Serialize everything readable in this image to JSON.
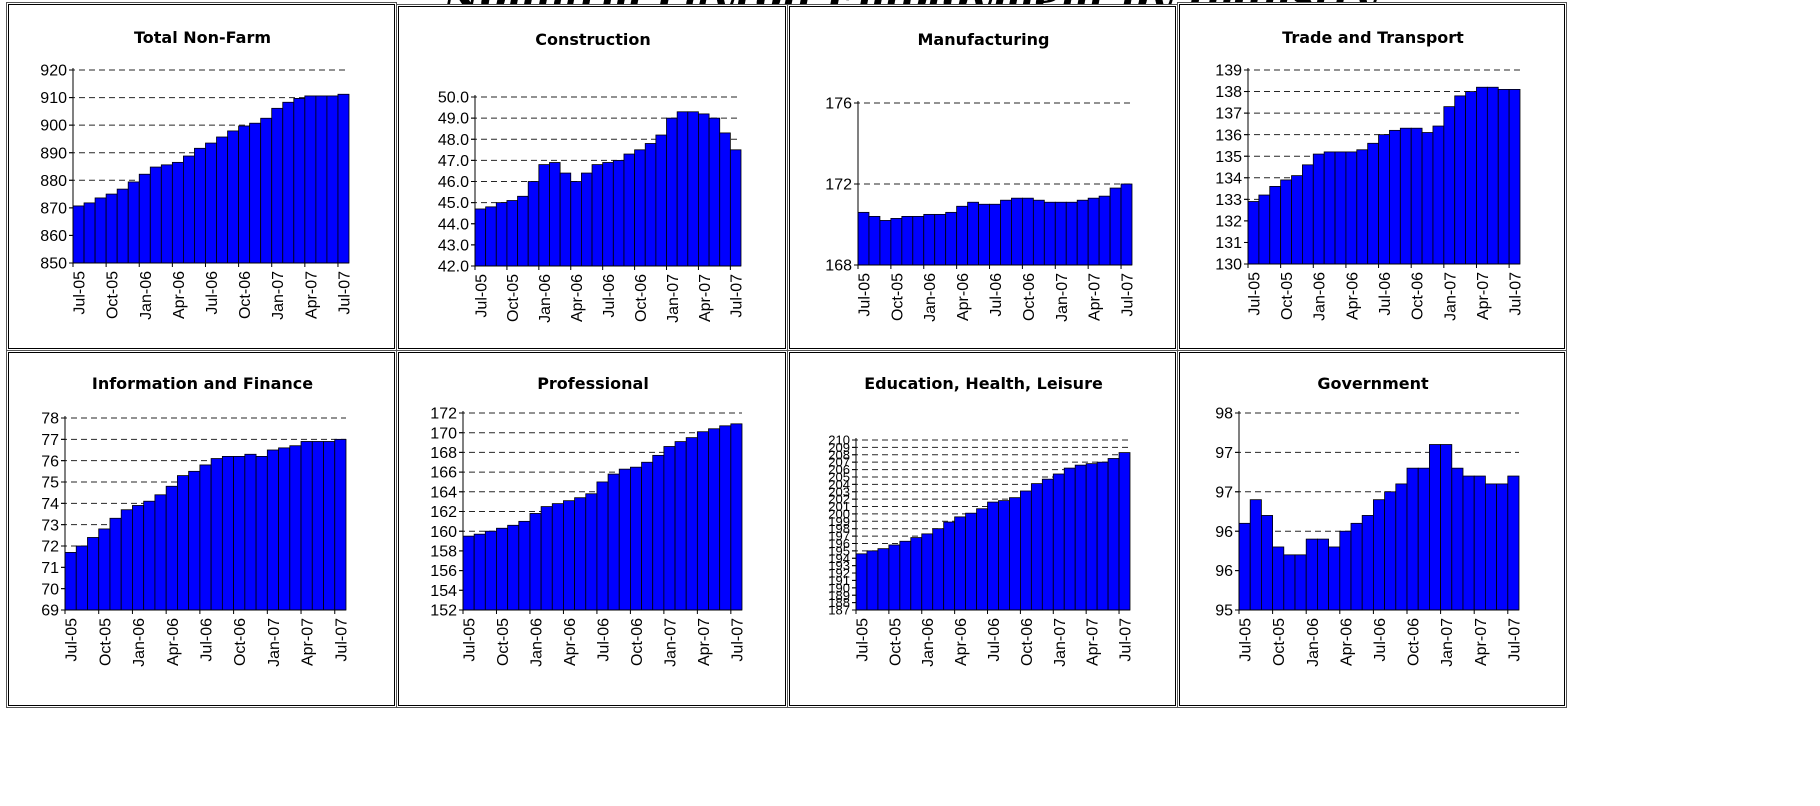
{
  "page_title": "Nonfarm Payroll Employment by Industry",
  "colors": {
    "bar_fill": "#0000FF",
    "bar_stroke": "#000000",
    "grid": "#000000",
    "axis_text": "#000000"
  },
  "chart_data": [
    {
      "type": "bar",
      "title": "Total Non-Farm",
      "categories": [
        "Jul-05",
        "Aug-05",
        "Sep-05",
        "Oct-05",
        "Nov-05",
        "Dec-05",
        "Jan-06",
        "Feb-06",
        "Mar-06",
        "Apr-06",
        "May-06",
        "Jun-06",
        "Jul-06",
        "Aug-06",
        "Sep-06",
        "Oct-06",
        "Nov-06",
        "Dec-06",
        "Jan-07",
        "Feb-07",
        "Mar-07",
        "Apr-07",
        "May-07",
        "Jun-07",
        "Jul-07"
      ],
      "tick_labels": [
        "Jul-05",
        "Oct-05",
        "Jan-06",
        "Apr-06",
        "Jul-06",
        "Oct-06",
        "Jan-07",
        "Apr-07",
        "Jul-07"
      ],
      "values": [
        870.7,
        871.8,
        873.6,
        875.0,
        876.8,
        879.4,
        882.2,
        884.8,
        885.6,
        886.5,
        888.8,
        891.6,
        893.5,
        895.7,
        897.9,
        899.7,
        900.7,
        902.5,
        906.1,
        908.3,
        909.7,
        910.6,
        910.6,
        910.6,
        911.2
      ],
      "yticks": [
        "850",
        "860",
        "870",
        "880",
        "890",
        "900",
        "910",
        "920"
      ],
      "ylim": [
        850,
        920
      ],
      "grid": true
    },
    {
      "type": "bar",
      "title": "Construction",
      "categories": [
        "Jul-05",
        "Aug-05",
        "Sep-05",
        "Oct-05",
        "Nov-05",
        "Dec-05",
        "Jan-06",
        "Feb-06",
        "Mar-06",
        "Apr-06",
        "May-06",
        "Jun-06",
        "Jul-06",
        "Aug-06",
        "Sep-06",
        "Oct-06",
        "Nov-06",
        "Dec-06",
        "Jan-07",
        "Feb-07",
        "Mar-07",
        "Apr-07",
        "May-07",
        "Jun-07",
        "Jul-07"
      ],
      "tick_labels": [
        "Jul-05",
        "Oct-05",
        "Jan-06",
        "Apr-06",
        "Jul-06",
        "Oct-06",
        "Jan-07",
        "Apr-07",
        "Jul-07"
      ],
      "values": [
        44.7,
        44.8,
        45.0,
        45.1,
        45.3,
        46.0,
        46.8,
        46.9,
        46.4,
        46.0,
        46.4,
        46.8,
        46.9,
        47.0,
        47.3,
        47.5,
        47.8,
        48.2,
        49.0,
        49.3,
        49.3,
        49.2,
        49.0,
        48.3,
        47.5
      ],
      "yticks": [
        "42.0",
        "43.0",
        "44.0",
        "45.0",
        "46.0",
        "47.0",
        "48.0",
        "49.0",
        "50.0"
      ],
      "ylim": [
        42,
        50
      ],
      "grid": true
    },
    {
      "type": "bar",
      "title": "Manufacturing",
      "categories": [
        "Jul-05",
        "Aug-05",
        "Sep-05",
        "Oct-05",
        "Nov-05",
        "Dec-05",
        "Jan-06",
        "Feb-06",
        "Mar-06",
        "Apr-06",
        "May-06",
        "Jun-06",
        "Jul-06",
        "Aug-06",
        "Sep-06",
        "Oct-06",
        "Nov-06",
        "Dec-06",
        "Jan-07",
        "Feb-07",
        "Mar-07",
        "Apr-07",
        "May-07",
        "Jun-07",
        "Jul-07"
      ],
      "tick_labels": [
        "Jul-05",
        "Oct-05",
        "Jan-06",
        "Apr-06",
        "Jul-06",
        "Oct-06",
        "Jan-07",
        "Apr-07",
        "Jul-07"
      ],
      "values": [
        170.6,
        170.4,
        170.2,
        170.3,
        170.4,
        170.4,
        170.5,
        170.5,
        170.6,
        170.9,
        171.1,
        171.0,
        171.0,
        171.2,
        171.3,
        171.3,
        171.2,
        171.1,
        171.1,
        171.1,
        171.2,
        171.3,
        171.4,
        171.8,
        172.0
      ],
      "yticks": [
        "168",
        "172",
        "176"
      ],
      "ylim": [
        168,
        176
      ],
      "grid": true
    },
    {
      "type": "bar",
      "title": "Trade and Transport",
      "categories": [
        "Jul-05",
        "Aug-05",
        "Sep-05",
        "Oct-05",
        "Nov-05",
        "Dec-05",
        "Jan-06",
        "Feb-06",
        "Mar-06",
        "Apr-06",
        "May-06",
        "Jun-06",
        "Jul-06",
        "Aug-06",
        "Sep-06",
        "Oct-06",
        "Nov-06",
        "Dec-06",
        "Jan-07",
        "Feb-07",
        "Mar-07",
        "Apr-07",
        "May-07",
        "Jun-07",
        "Jul-07"
      ],
      "tick_labels": [
        "Jul-05",
        "Oct-05",
        "Jan-06",
        "Apr-06",
        "Jul-06",
        "Oct-06",
        "Jan-07",
        "Apr-07",
        "Jul-07"
      ],
      "values": [
        132.9,
        133.2,
        133.6,
        133.9,
        134.1,
        134.6,
        135.1,
        135.2,
        135.2,
        135.2,
        135.3,
        135.6,
        136.0,
        136.2,
        136.3,
        136.3,
        136.1,
        136.4,
        137.3,
        137.8,
        138.0,
        138.2,
        138.2,
        138.1,
        138.1
      ],
      "yticks": [
        "130",
        "131",
        "132",
        "133",
        "134",
        "135",
        "136",
        "137",
        "138",
        "139"
      ],
      "ylim": [
        130,
        139
      ],
      "grid": true
    },
    {
      "type": "bar",
      "title": "Information and Finance",
      "categories": [
        "Jul-05",
        "Aug-05",
        "Sep-05",
        "Oct-05",
        "Nov-05",
        "Dec-05",
        "Jan-06",
        "Feb-06",
        "Mar-06",
        "Apr-06",
        "May-06",
        "Jun-06",
        "Jul-06",
        "Aug-06",
        "Sep-06",
        "Oct-06",
        "Nov-06",
        "Dec-06",
        "Jan-07",
        "Feb-07",
        "Mar-07",
        "Apr-07",
        "May-07",
        "Jun-07",
        "Jul-07"
      ],
      "tick_labels": [
        "Jul-05",
        "Oct-05",
        "Jan-06",
        "Apr-06",
        "Jul-06",
        "Oct-06",
        "Jan-07",
        "Apr-07",
        "Jul-07"
      ],
      "values": [
        71.7,
        72.0,
        72.4,
        72.8,
        73.3,
        73.7,
        73.9,
        74.1,
        74.4,
        74.8,
        75.3,
        75.5,
        75.8,
        76.1,
        76.2,
        76.2,
        76.3,
        76.2,
        76.5,
        76.6,
        76.7,
        76.9,
        76.9,
        76.9,
        77.0
      ],
      "yticks": [
        "69",
        "70",
        "71",
        "72",
        "73",
        "74",
        "75",
        "76",
        "77",
        "78"
      ],
      "ylim": [
        69,
        78
      ],
      "grid": true
    },
    {
      "type": "bar",
      "title": "Professional",
      "categories": [
        "Jul-05",
        "Aug-05",
        "Sep-05",
        "Oct-05",
        "Nov-05",
        "Dec-05",
        "Jan-06",
        "Feb-06",
        "Mar-06",
        "Apr-06",
        "May-06",
        "Jun-06",
        "Jul-06",
        "Aug-06",
        "Sep-06",
        "Oct-06",
        "Nov-06",
        "Dec-06",
        "Jan-07",
        "Feb-07",
        "Mar-07",
        "Apr-07",
        "May-07",
        "Jun-07",
        "Jul-07"
      ],
      "tick_labels": [
        "Jul-05",
        "Oct-05",
        "Jan-06",
        "Apr-06",
        "Jul-06",
        "Oct-06",
        "Jan-07",
        "Apr-07",
        "Jul-07"
      ],
      "values": [
        159.5,
        159.7,
        160.0,
        160.3,
        160.6,
        161.0,
        161.8,
        162.5,
        162.8,
        163.1,
        163.4,
        163.8,
        165.0,
        165.8,
        166.3,
        166.5,
        167.0,
        167.7,
        168.6,
        169.1,
        169.5,
        170.1,
        170.4,
        170.7,
        170.9
      ],
      "yticks": [
        "152",
        "154",
        "156",
        "158",
        "160",
        "162",
        "164",
        "166",
        "168",
        "170",
        "172"
      ],
      "ylim": [
        152,
        172
      ],
      "grid": true
    },
    {
      "type": "bar",
      "title": "Education, Health, Leisure",
      "categories": [
        "Jul-05",
        "Aug-05",
        "Sep-05",
        "Oct-05",
        "Nov-05",
        "Dec-05",
        "Jan-06",
        "Feb-06",
        "Mar-06",
        "Apr-06",
        "May-06",
        "Jun-06",
        "Jul-06",
        "Aug-06",
        "Sep-06",
        "Oct-06",
        "Nov-06",
        "Dec-06",
        "Jan-07",
        "Feb-07",
        "Mar-07",
        "Apr-07",
        "May-07",
        "Jun-07",
        "Jul-07"
      ],
      "tick_labels": [
        "Jul-05",
        "Oct-05",
        "Jan-06",
        "Apr-06",
        "Jul-06",
        "Oct-06",
        "Jan-07",
        "Apr-07",
        "Jul-07"
      ],
      "values": [
        194.6,
        195.0,
        195.3,
        195.8,
        196.3,
        196.8,
        197.3,
        198.0,
        198.9,
        199.6,
        200.1,
        200.7,
        201.6,
        201.8,
        202.2,
        203.1,
        204.1,
        204.7,
        205.4,
        206.2,
        206.6,
        206.8,
        207.0,
        207.5,
        208.3
      ],
      "yticks": [
        "187",
        "188",
        "189",
        "190",
        "191",
        "192",
        "193",
        "194",
        "195",
        "196",
        "197",
        "198",
        "199",
        "200",
        "201",
        "202",
        "203",
        "204",
        "205",
        "206",
        "207",
        "208",
        "209",
        "210"
      ],
      "ylim": [
        187,
        210
      ],
      "grid": true
    },
    {
      "type": "bar",
      "title": "Government",
      "categories": [
        "Jul-05",
        "Aug-05",
        "Sep-05",
        "Oct-05",
        "Nov-05",
        "Dec-05",
        "Jan-06",
        "Feb-06",
        "Mar-06",
        "Apr-06",
        "May-06",
        "Jun-06",
        "Jul-06",
        "Aug-06",
        "Sep-06",
        "Oct-06",
        "Nov-06",
        "Dec-06",
        "Jan-07",
        "Feb-07",
        "Mar-07",
        "Apr-07",
        "May-07",
        "Jun-07",
        "Jul-07"
      ],
      "tick_labels": [
        "Jul-05",
        "Oct-05",
        "Jan-06",
        "Apr-06",
        "Jul-06",
        "Oct-06",
        "Jan-07",
        "Apr-07",
        "Jul-07"
      ],
      "values": [
        96.1,
        96.4,
        96.2,
        95.8,
        95.7,
        95.7,
        95.9,
        95.9,
        95.8,
        96.0,
        96.1,
        96.2,
        96.4,
        96.5,
        96.6,
        96.8,
        96.8,
        97.1,
        97.1,
        96.8,
        96.7,
        96.7,
        96.6,
        96.6,
        96.7
      ],
      "yticks": [
        "95",
        "96",
        "96",
        "97",
        "97",
        "98"
      ],
      "ylim": [
        95,
        97.5
      ],
      "grid": true
    }
  ]
}
